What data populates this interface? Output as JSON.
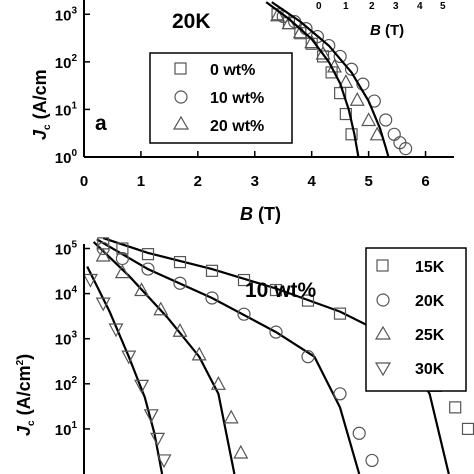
{
  "chart_data": [
    {
      "id": "a",
      "type": "scatter",
      "panel_label": "a",
      "annotation": "20K",
      "xlabel": "B (T)",
      "ylabel": "Jc (A/cm2)",
      "xlim": [
        0,
        6.5
      ],
      "ylim_log10": [
        0,
        3.3
      ],
      "xticks": [
        "0",
        "1",
        "2",
        "3",
        "4",
        "5",
        "6"
      ],
      "yticks": [
        {
          "base": "10",
          "exp": "0"
        },
        {
          "base": "10",
          "exp": "1"
        },
        {
          "base": "10",
          "exp": "2"
        },
        {
          "base": "10",
          "exp": "3"
        }
      ],
      "inset": {
        "xlabel": "B (T)",
        "xticks": [
          "0",
          "1",
          "2",
          "3",
          "4",
          "5"
        ]
      },
      "legend": [
        "0 wt%",
        "10 wt%",
        "20 wt%"
      ],
      "series": [
        {
          "name": "0 wt%",
          "marker": "square",
          "x": [
            3.4,
            3.6,
            3.8,
            4.0,
            4.2,
            4.35,
            4.5,
            4.6,
            4.7
          ],
          "y": [
            1000,
            650,
            400,
            240,
            130,
            60,
            22,
            8,
            3
          ]
        },
        {
          "name": "10 wt%",
          "marker": "circle",
          "x": [
            3.5,
            3.7,
            3.9,
            4.1,
            4.3,
            4.5,
            4.7,
            4.9,
            5.1,
            5.3,
            5.45,
            5.55,
            5.65
          ],
          "y": [
            900,
            700,
            500,
            340,
            220,
            130,
            70,
            34,
            15,
            6,
            3,
            2,
            1.5
          ]
        },
        {
          "name": "20 wt%",
          "marker": "triangle",
          "x": [
            3.4,
            3.6,
            3.8,
            4.0,
            4.2,
            4.4,
            4.6,
            4.8,
            5.0,
            5.15
          ],
          "y": [
            950,
            650,
            420,
            260,
            150,
            80,
            38,
            16,
            6,
            3
          ]
        }
      ],
      "fits": [
        {
          "x": [
            3.2,
            3.6,
            4.0,
            4.3,
            4.5,
            4.65,
            4.75,
            4.82
          ],
          "y": [
            1800,
            800,
            300,
            100,
            35,
            10,
            3,
            1
          ]
        },
        {
          "x": [
            3.3,
            3.8,
            4.3,
            4.7,
            5.0,
            5.2,
            5.3,
            5.35
          ],
          "y": [
            1800,
            700,
            220,
            60,
            15,
            4,
            1.6,
            1
          ]
        }
      ]
    },
    {
      "id": "b",
      "type": "scatter",
      "annotation": "10 wt%",
      "xlabel": "",
      "ylabel": "Jc (A/cm2)",
      "ylim_log10": [
        0,
        5.1
      ],
      "yticks": [
        {
          "base": "10",
          "exp": "1"
        },
        {
          "base": "10",
          "exp": "2"
        },
        {
          "base": "10",
          "exp": "3"
        },
        {
          "base": "10",
          "exp": "4"
        },
        {
          "base": "10",
          "exp": "5"
        }
      ],
      "legend": [
        "15K",
        "20K",
        "25K",
        "30K"
      ],
      "series": [
        {
          "name": "15K",
          "marker": "square",
          "x": [
            0.3,
            0.6,
            1.0,
            1.5,
            2.0,
            2.5,
            3.0,
            3.5,
            4.0,
            4.5,
            5.0,
            5.5,
            5.8,
            6.0
          ],
          "y": [
            130000,
            100000,
            75000,
            50000,
            32000,
            20000,
            12000,
            7000,
            3600,
            1600,
            500,
            90,
            30,
            10
          ]
        },
        {
          "name": "20K",
          "marker": "circle",
          "x": [
            0.3,
            0.6,
            1.0,
            1.5,
            2.0,
            2.5,
            3.0,
            3.5,
            4.0,
            4.3,
            4.5
          ],
          "y": [
            100000,
            60000,
            35000,
            17000,
            8000,
            3500,
            1400,
            400,
            60,
            8,
            2
          ]
        },
        {
          "name": "25K",
          "marker": "triangle",
          "x": [
            0.3,
            0.6,
            0.9,
            1.2,
            1.5,
            1.8,
            2.1,
            2.3,
            2.45
          ],
          "y": [
            70000,
            30000,
            12000,
            4500,
            1500,
            450,
            100,
            18,
            3
          ]
        },
        {
          "name": "30K",
          "marker": "inverted-triangle",
          "x": [
            0.1,
            0.3,
            0.5,
            0.7,
            0.9,
            1.05,
            1.15,
            1.25
          ],
          "y": [
            20000,
            6000,
            1600,
            400,
            90,
            20,
            6,
            2
          ]
        }
      ],
      "fits": [
        {
          "x": [
            0.3,
            1.0,
            2.0,
            3.0,
            4.0,
            4.6,
            5.0,
            5.4,
            5.7
          ],
          "y": [
            170000,
            80000,
            35000,
            13000,
            4000,
            1500,
            500,
            60,
            1
          ]
        },
        {
          "x": [
            0.2,
            1.0,
            2.0,
            3.0,
            3.6,
            4.0,
            4.3
          ],
          "y": [
            160000,
            35000,
            8000,
            1400,
            400,
            30,
            1
          ]
        },
        {
          "x": [
            0.15,
            0.7,
            1.3,
            1.8,
            2.1,
            2.35
          ],
          "y": [
            140000,
            25000,
            3000,
            400,
            60,
            1
          ]
        },
        {
          "x": [
            0.05,
            0.4,
            0.7,
            0.95,
            1.1,
            1.22
          ],
          "y": [
            40000,
            4000,
            400,
            50,
            8,
            1
          ]
        }
      ]
    }
  ]
}
